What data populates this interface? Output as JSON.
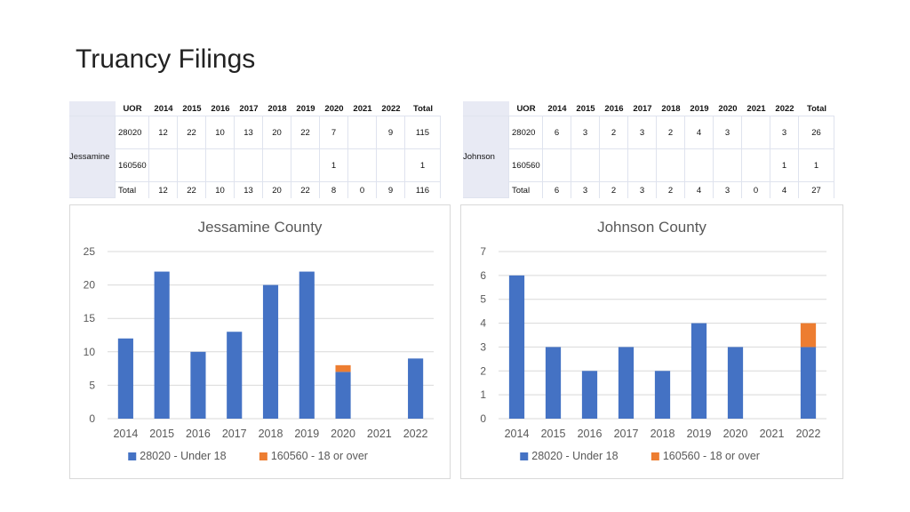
{
  "slide": {
    "title": "Truancy Filings"
  },
  "tables": [
    {
      "county": "Jessamine",
      "headers": [
        "UOR",
        "2014",
        "2015",
        "2016",
        "2017",
        "2018",
        "2019",
        "2020",
        "2021",
        "2022",
        "Total"
      ],
      "rows": [
        [
          "28020",
          "12",
          "22",
          "10",
          "13",
          "20",
          "22",
          "7",
          "",
          "9",
          "115"
        ],
        [
          "160560",
          "",
          "",
          "",
          "",
          "",
          "",
          "1",
          "",
          "",
          "1"
        ],
        [
          "Total",
          "12",
          "22",
          "10",
          "13",
          "20",
          "22",
          "8",
          "0",
          "9",
          "116"
        ]
      ]
    },
    {
      "county": "Johnson",
      "headers": [
        "UOR",
        "2014",
        "2015",
        "2016",
        "2017",
        "2018",
        "2019",
        "2020",
        "2021",
        "2022",
        "Total"
      ],
      "rows": [
        [
          "28020",
          "6",
          "3",
          "2",
          "3",
          "2",
          "4",
          "3",
          "",
          "3",
          "26"
        ],
        [
          "160560",
          "",
          "",
          "",
          "",
          "",
          "",
          "",
          "",
          "1",
          "1"
        ],
        [
          "Total",
          "6",
          "3",
          "2",
          "3",
          "2",
          "4",
          "3",
          "0",
          "4",
          "27"
        ]
      ]
    }
  ],
  "chart_data": [
    {
      "type": "bar",
      "stacked": true,
      "title": "Jessamine County",
      "categories": [
        "2014",
        "2015",
        "2016",
        "2017",
        "2018",
        "2019",
        "2020",
        "2021",
        "2022"
      ],
      "series": [
        {
          "name": "28020 - Under 18",
          "color": "#4472c4",
          "values": [
            12,
            22,
            10,
            13,
            20,
            22,
            7,
            0,
            9
          ]
        },
        {
          "name": "160560 - 18 or over",
          "color": "#ed7d31",
          "values": [
            0,
            0,
            0,
            0,
            0,
            0,
            1,
            0,
            0
          ]
        }
      ],
      "ylim": [
        0,
        25
      ],
      "yticks": [
        0,
        5,
        10,
        15,
        20,
        25
      ],
      "grid": true,
      "legend": "bottom"
    },
    {
      "type": "bar",
      "stacked": true,
      "title": "Johnson County",
      "categories": [
        "2014",
        "2015",
        "2016",
        "2017",
        "2018",
        "2019",
        "2020",
        "2021",
        "2022"
      ],
      "series": [
        {
          "name": "28020 - Under 18",
          "color": "#4472c4",
          "values": [
            6,
            3,
            2,
            3,
            2,
            4,
            3,
            0,
            3
          ]
        },
        {
          "name": "160560 - 18 or over",
          "color": "#ed7d31",
          "values": [
            0,
            0,
            0,
            0,
            0,
            0,
            0,
            0,
            1
          ]
        }
      ],
      "ylim": [
        0,
        7
      ],
      "yticks": [
        0,
        1,
        2,
        3,
        4,
        5,
        6,
        7
      ],
      "grid": true,
      "legend": "bottom"
    }
  ]
}
